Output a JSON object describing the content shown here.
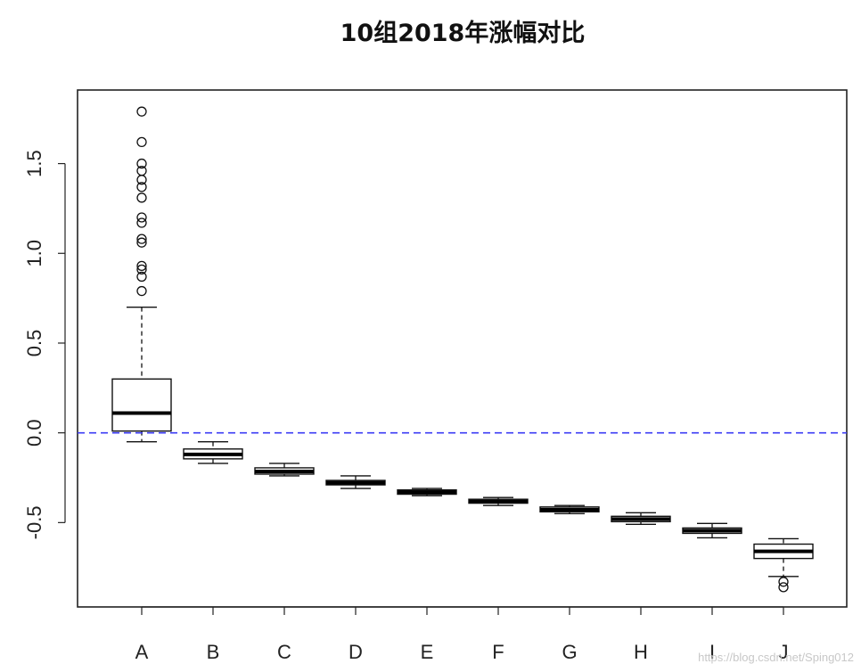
{
  "watermark": "https://blog.csdn.net/Sping012",
  "chart_data": {
    "type": "boxplot",
    "title": "10组2018年涨幅对比",
    "xlabel": "",
    "ylabel": "",
    "categories": [
      "A",
      "B",
      "C",
      "D",
      "E",
      "F",
      "G",
      "H",
      "I",
      "J"
    ],
    "ylim": [
      -0.97,
      1.91
    ],
    "yticks": [
      -0.5,
      0.0,
      0.5,
      1.0,
      1.5
    ],
    "ytick_labels": [
      "-0.5",
      "0.0",
      "0.5",
      "1.0",
      "1.5"
    ],
    "grid": false,
    "reference_line": {
      "y": 0.0,
      "style": "dashed",
      "color": "#3b3bf5"
    },
    "boxes": [
      {
        "name": "A",
        "whisker_low": -0.05,
        "q1": 0.01,
        "median": 0.11,
        "q3": 0.3,
        "whisker_high": 0.7,
        "outliers": [
          0.79,
          0.87,
          0.91,
          0.93,
          1.06,
          1.08,
          1.17,
          1.2,
          1.31,
          1.37,
          1.41,
          1.46,
          1.5,
          1.62,
          1.79
        ]
      },
      {
        "name": "B",
        "whisker_low": -0.17,
        "q1": -0.145,
        "median": -0.12,
        "q3": -0.09,
        "whisker_high": -0.05,
        "outliers": []
      },
      {
        "name": "C",
        "whisker_low": -0.24,
        "q1": -0.23,
        "median": -0.215,
        "q3": -0.195,
        "whisker_high": -0.17,
        "outliers": []
      },
      {
        "name": "D",
        "whisker_low": -0.31,
        "q1": -0.29,
        "median": -0.278,
        "q3": -0.265,
        "whisker_high": -0.24,
        "outliers": []
      },
      {
        "name": "E",
        "whisker_low": -0.35,
        "q1": -0.342,
        "median": -0.33,
        "q3": -0.318,
        "whisker_high": -0.31,
        "outliers": []
      },
      {
        "name": "F",
        "whisker_low": -0.405,
        "q1": -0.392,
        "median": -0.382,
        "q3": -0.37,
        "whisker_high": -0.36,
        "outliers": []
      },
      {
        "name": "G",
        "whisker_low": -0.45,
        "q1": -0.44,
        "median": -0.428,
        "q3": -0.413,
        "whisker_high": -0.405,
        "outliers": []
      },
      {
        "name": "H",
        "whisker_low": -0.51,
        "q1": -0.495,
        "median": -0.48,
        "q3": -0.465,
        "whisker_high": -0.445,
        "outliers": []
      },
      {
        "name": "I",
        "whisker_low": -0.585,
        "q1": -0.56,
        "median": -0.545,
        "q3": -0.53,
        "whisker_high": -0.505,
        "outliers": []
      },
      {
        "name": "J",
        "whisker_low": -0.8,
        "q1": -0.7,
        "median": -0.66,
        "q3": -0.62,
        "whisker_high": -0.59,
        "outliers": [
          -0.83,
          -0.86
        ]
      }
    ]
  }
}
